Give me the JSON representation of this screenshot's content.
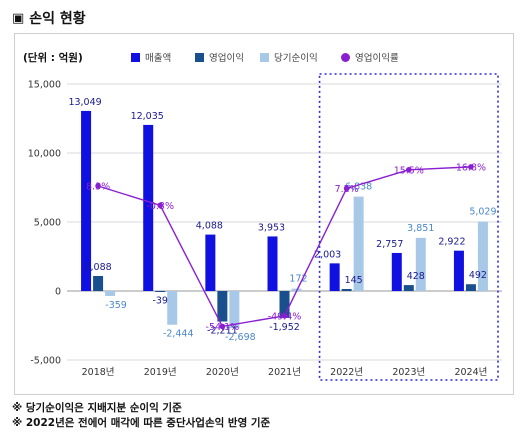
{
  "heading": {
    "marker": "▣",
    "title": "손익 현황"
  },
  "chart_data": {
    "type": "bar+line",
    "unit_label": "(단위 : 억원)",
    "categories": [
      "2018년",
      "2019년",
      "2020년",
      "2021년",
      "2022년",
      "2023년",
      "2024년"
    ],
    "series": [
      {
        "name": "매출액",
        "type": "bar",
        "color": "#1010e0",
        "values": [
          13049,
          12035,
          4088,
          3953,
          2003,
          2757,
          2922
        ],
        "labels": [
          "13,049",
          "12,035",
          "4,088",
          "3,953",
          "2,003",
          "2,757",
          "2,922"
        ]
      },
      {
        "name": "영업이익",
        "type": "bar",
        "color": "#1a4f8e",
        "values": [
          1088,
          -39,
          -2211,
          -1952,
          145,
          428,
          492
        ],
        "labels": [
          "1,088",
          "-39",
          "-2,211",
          "-1,952",
          "145",
          "428",
          "492"
        ]
      },
      {
        "name": "당기순이익",
        "type": "bar",
        "color": "#a8c8e8",
        "values": [
          -359,
          -2444,
          -2698,
          172,
          6838,
          3851,
          5029
        ],
        "labels": [
          "-359",
          "-2,444",
          "-2,698",
          "172",
          "6,838",
          "3,851",
          "5,029"
        ]
      },
      {
        "name": "영업이익률",
        "type": "line",
        "color": "#8a1fd1",
        "values": [
          8.3,
          -0.3,
          -54.1,
          -49.4,
          7.2,
          15.5,
          16.8
        ],
        "labels": [
          "8.3%",
          "-0.3%",
          "-54.1%",
          "-49.4%",
          "7.2%",
          "15.5%",
          "16.8%"
        ]
      }
    ],
    "y_ticks": [
      15000,
      10000,
      5000,
      0,
      -5000
    ],
    "y_tick_labels": [
      "15,000",
      "10,000",
      "5,000",
      "0",
      "-5,000"
    ],
    "ylim": [
      -5000,
      15000
    ],
    "grid": true,
    "legend": "top",
    "highlight": {
      "from": "2022년",
      "to": "2024년",
      "style": "dotted",
      "color": "#2a2ad6"
    }
  },
  "notes": [
    "※ 당기순이익은 지배지분 순이익 기준",
    "※ 2022년은 전에어 매각에 따른 중단사업손익 반영 기준"
  ]
}
